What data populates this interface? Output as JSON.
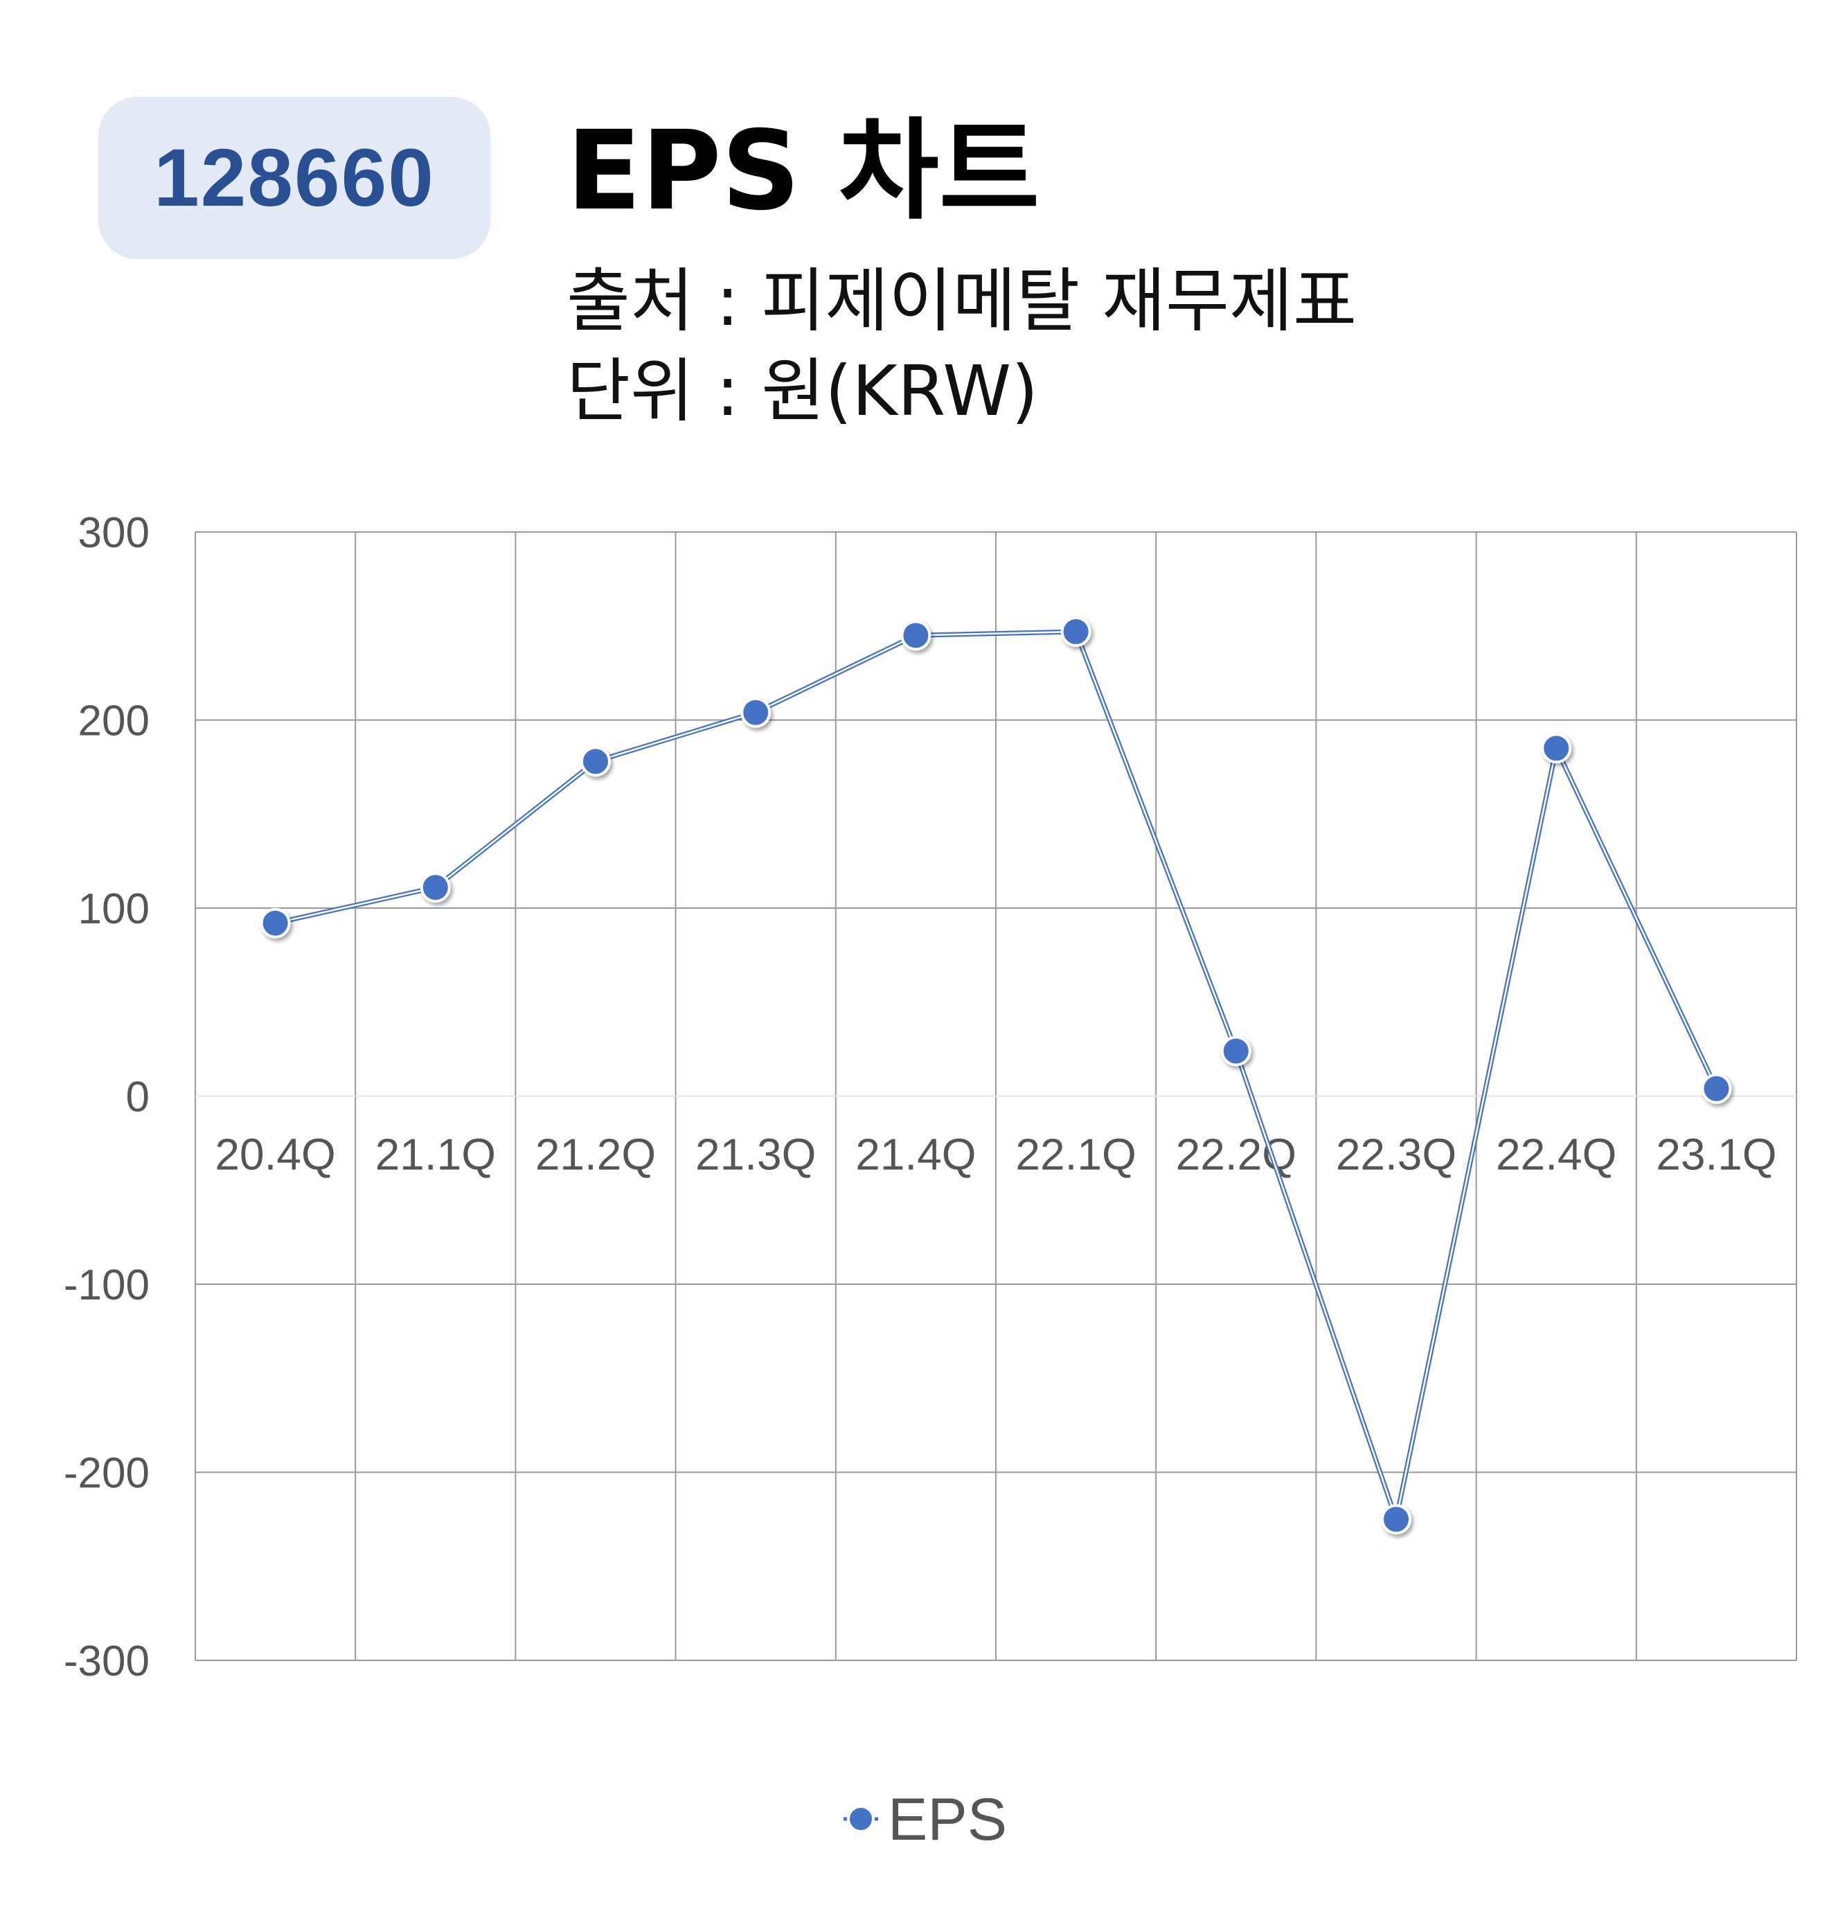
{
  "header": {
    "ticker": "128660",
    "title": "EPS 차트",
    "source": "출처 : 피제이메탈 재무제표",
    "unit": "단위 : 원(KRW)"
  },
  "colors": {
    "series": "#4472c4",
    "badge_bg": "#e3e9f5",
    "badge_text": "#2b4f93",
    "grid": "#888888"
  },
  "chart_data": {
    "type": "line",
    "title": "EPS 차트",
    "xlabel": "",
    "ylabel": "",
    "categories": [
      "20.4Q",
      "21.1Q",
      "21.2Q",
      "21.3Q",
      "21.4Q",
      "22.1Q",
      "22.2Q",
      "22.3Q",
      "22.4Q",
      "23.1Q"
    ],
    "series": [
      {
        "name": "EPS",
        "values": [
          92,
          111,
          178,
          204,
          245,
          247,
          24,
          -225,
          185,
          4
        ]
      }
    ],
    "ylim": [
      -300,
      300
    ],
    "yticks": [
      "300",
      "200",
      "100",
      "0",
      "-100",
      "-200",
      "-300"
    ],
    "grid": true,
    "legend_position": "bottom"
  }
}
